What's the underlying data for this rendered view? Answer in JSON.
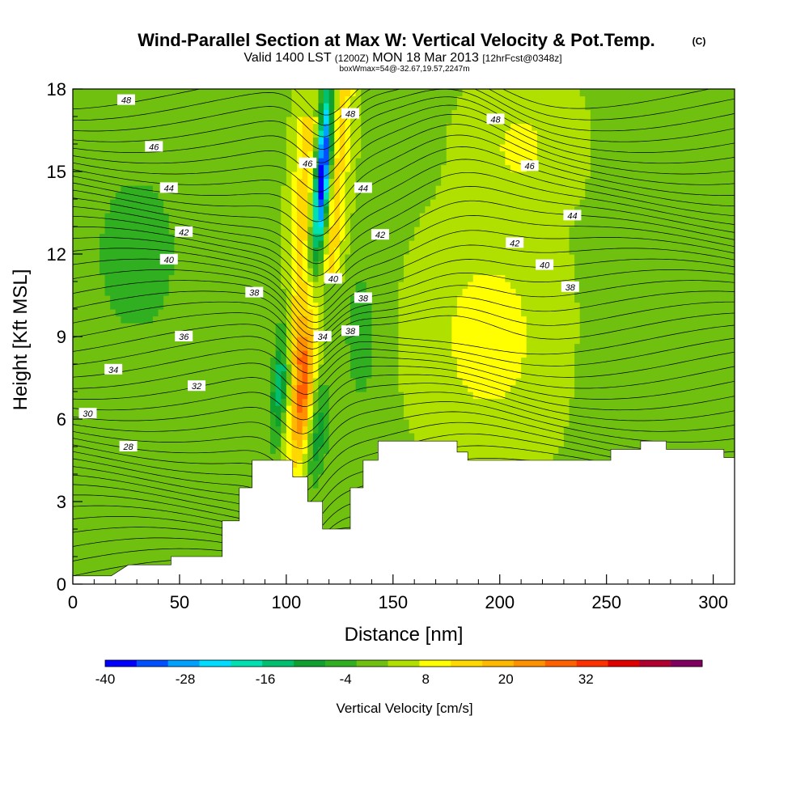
{
  "chart_data": {
    "type": "heatmap",
    "title": "Wind-Parallel Section at Max W: Vertical Velocity & Pot.Temp.",
    "title_mark": "(C)",
    "subtitle": {
      "lead": "Valid 1400 LST",
      "zone": "(1200Z)",
      "date": "MON 18 Mar 2013",
      "fcst": "[12hrFcst@0348z]"
    },
    "subsubtitle": "boxWmax=54@-32.67,19.57,2247m",
    "xlabel": "Distance [nm]",
    "ylabel": "Height [Kft MSL]",
    "xlim": [
      0,
      310
    ],
    "ylim": [
      0,
      18
    ],
    "xticks": [
      "0",
      "50",
      "100",
      "150",
      "200",
      "250",
      "300"
    ],
    "yticks": [
      "0",
      "3",
      "6",
      "9",
      "12",
      "15",
      "18"
    ],
    "colorbar": {
      "label": "Vertical Velocity [cm/s]",
      "tick_labels": [
        "-40",
        "-28",
        "-16",
        "-4",
        "8",
        "20",
        "32"
      ],
      "colors": [
        "#0000ff",
        "#0050ff",
        "#00a0ff",
        "#00dcff",
        "#00e0b0",
        "#00c070",
        "#10a030",
        "#30b020",
        "#70c010",
        "#b0e000",
        "#ffff00",
        "#ffd800",
        "#ffb800",
        "#ff9000",
        "#ff6000",
        "#ff3000",
        "#e00000",
        "#b00030",
        "#800060"
      ]
    },
    "velocity_field_cm_s": {
      "background": 2,
      "features": [
        {
          "x": 100,
          "y": 10.5,
          "value": 10
        },
        {
          "x": 108,
          "y": 7.0,
          "value": 30
        },
        {
          "x": 110,
          "y": 15.0,
          "value": -40
        },
        {
          "x": 120,
          "y": 13.0,
          "value": 12
        },
        {
          "x": 97,
          "y": 7.5,
          "value": -16
        },
        {
          "x": 115,
          "y": 5.5,
          "value": -10
        },
        {
          "x": 135,
          "y": 9.0,
          "value": -8
        },
        {
          "x": 185,
          "y": 9.5,
          "value": 10
        },
        {
          "x": 210,
          "y": 16.0,
          "value": 8
        },
        {
          "x": 30,
          "y": 12.0,
          "value": -4
        },
        {
          "x": 290,
          "y": 8.0,
          "value": -4
        }
      ]
    },
    "isentrope_labels": [
      {
        "text": "48",
        "x": 25,
        "y": 17.6
      },
      {
        "text": "46",
        "x": 38,
        "y": 15.9
      },
      {
        "text": "44",
        "x": 45,
        "y": 14.4
      },
      {
        "text": "42",
        "x": 52,
        "y": 12.8
      },
      {
        "text": "40",
        "x": 45,
        "y": 11.8
      },
      {
        "text": "38",
        "x": 85,
        "y": 10.6
      },
      {
        "text": "36",
        "x": 52,
        "y": 9.0
      },
      {
        "text": "34",
        "x": 19,
        "y": 7.8
      },
      {
        "text": "32",
        "x": 58,
        "y": 7.2
      },
      {
        "text": "30",
        "x": 7,
        "y": 6.2
      },
      {
        "text": "28",
        "x": 26,
        "y": 5.0
      },
      {
        "text": "48",
        "x": 130,
        "y": 17.1
      },
      {
        "text": "46",
        "x": 110,
        "y": 15.3
      },
      {
        "text": "44",
        "x": 136,
        "y": 14.4
      },
      {
        "text": "42",
        "x": 144,
        "y": 12.7
      },
      {
        "text": "40",
        "x": 122,
        "y": 11.1
      },
      {
        "text": "38",
        "x": 136,
        "y": 10.4
      },
      {
        "text": "38",
        "x": 130,
        "y": 9.2
      },
      {
        "text": "34",
        "x": 117,
        "y": 9.0
      },
      {
        "text": "48",
        "x": 198,
        "y": 16.9
      },
      {
        "text": "46",
        "x": 214,
        "y": 15.2
      },
      {
        "text": "44",
        "x": 234,
        "y": 13.4
      },
      {
        "text": "42",
        "x": 207,
        "y": 12.4
      },
      {
        "text": "40",
        "x": 221,
        "y": 11.6
      },
      {
        "text": "38",
        "x": 233,
        "y": 10.8
      }
    ],
    "terrain": [
      [
        0,
        0.3
      ],
      [
        18,
        0.3
      ],
      [
        26,
        0.7
      ],
      [
        46,
        0.7
      ],
      [
        46,
        1.0
      ],
      [
        70,
        1.0
      ],
      [
        70,
        2.3
      ],
      [
        78,
        2.3
      ],
      [
        78,
        3.5
      ],
      [
        84,
        3.5
      ],
      [
        84,
        4.5
      ],
      [
        103,
        4.5
      ],
      [
        103,
        3.9
      ],
      [
        110,
        3.9
      ],
      [
        110,
        3.0
      ],
      [
        117,
        3.0
      ],
      [
        117,
        2.0
      ],
      [
        130,
        2.0
      ],
      [
        130,
        3.5
      ],
      [
        136,
        3.5
      ],
      [
        136,
        4.5
      ],
      [
        143,
        4.5
      ],
      [
        143,
        5.2
      ],
      [
        180,
        5.2
      ],
      [
        180,
        4.8
      ],
      [
        185,
        4.8
      ],
      [
        185,
        4.5
      ],
      [
        252,
        4.5
      ],
      [
        252,
        4.9
      ],
      [
        266,
        4.9
      ],
      [
        266,
        5.2
      ],
      [
        278,
        5.2
      ],
      [
        278,
        4.9
      ],
      [
        305,
        4.9
      ],
      [
        305,
        4.6
      ],
      [
        310,
        4.6
      ]
    ]
  }
}
